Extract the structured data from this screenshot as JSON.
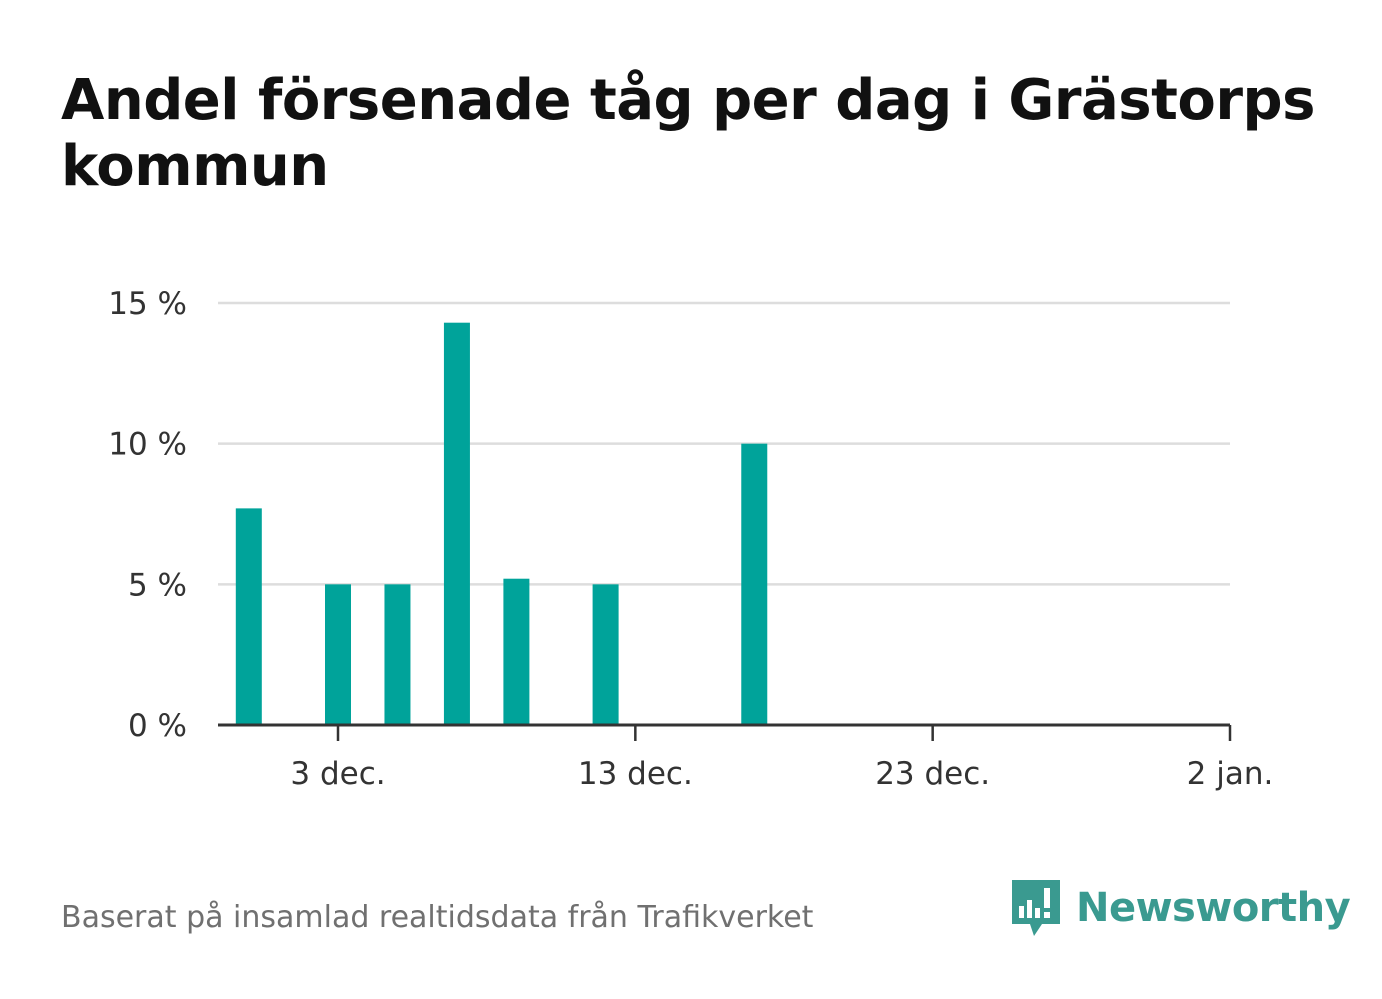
{
  "title": "Andel försenade tåg per dag i Grästorps kommun",
  "footer": {
    "source": "Baserat på insamlad realtidsdata från Trafikverket",
    "brand": "Newsworthy"
  },
  "colors": {
    "bar": "#00a39a",
    "brand": "#3a9a90",
    "grid": "#dddddd",
    "axis": "#333333"
  },
  "chart_data": {
    "type": "bar",
    "title": "Andel försenade tåg per dag i Grästorps kommun",
    "x_axis": {
      "type": "date",
      "start": "2023-11-29",
      "end": "2024-01-02"
    },
    "x_ticks": [
      {
        "date": "2023-12-03",
        "label": "3 dec."
      },
      {
        "date": "2023-12-13",
        "label": "13 dec."
      },
      {
        "date": "2023-12-23",
        "label": "23 dec."
      },
      {
        "date": "2024-01-02",
        "label": "2 jan."
      }
    ],
    "y_ticks": [
      {
        "value": 0,
        "label": "0 %"
      },
      {
        "value": 5,
        "label": "5 %"
      },
      {
        "value": 10,
        "label": "10 %"
      },
      {
        "value": 15,
        "label": "15 %"
      }
    ],
    "ylim": [
      0,
      15
    ],
    "grid": true,
    "bars": [
      {
        "date": "2023-11-30",
        "value": 7.7
      },
      {
        "date": "2023-12-03",
        "value": 5.0
      },
      {
        "date": "2023-12-05",
        "value": 5.0
      },
      {
        "date": "2023-12-07",
        "value": 14.3
      },
      {
        "date": "2023-12-09",
        "value": 5.2
      },
      {
        "date": "2023-12-12",
        "value": 5.0
      },
      {
        "date": "2023-12-17",
        "value": 10.0
      }
    ]
  }
}
